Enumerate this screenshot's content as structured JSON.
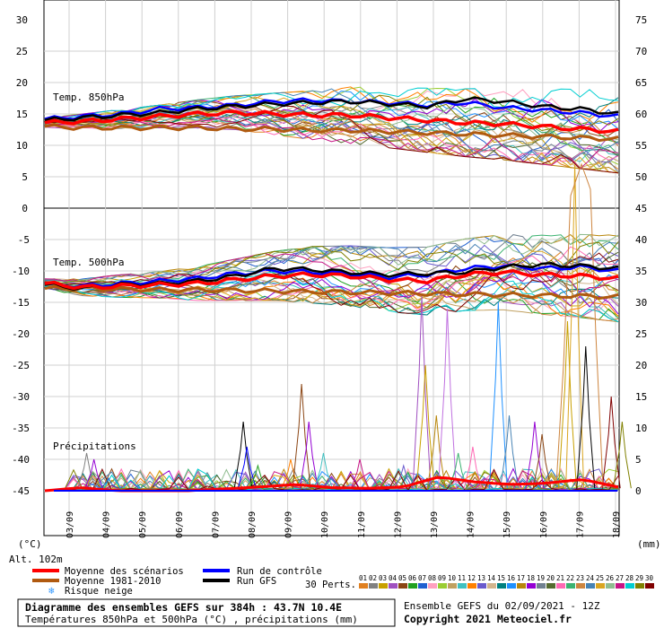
{
  "chart_data": {
    "type": "line",
    "footer": {
      "title": "Diagramme des ensembles GEFS sur 384h : 43.7N 10.4E",
      "subtitle": "Températures 850hPa et 500hPa (°C) , précipitations (mm)",
      "run": "Ensemble GEFS du 02/09/2021 - 12Z",
      "copyright": "Copyright 2021 Meteociel.fr"
    },
    "left_unit": "(°C)",
    "right_unit": "(mm)",
    "altitude": "Alt. 102m",
    "dates": [
      "03/09",
      "04/09",
      "05/09",
      "06/09",
      "07/09",
      "08/09",
      "09/09",
      "10/09",
      "11/09",
      "12/09",
      "13/09",
      "14/09",
      "15/09",
      "16/09",
      "17/09",
      "18/09"
    ],
    "panels": {
      "t850": {
        "label": "Temp. 850hPa",
        "left_ticks": [
          "30",
          "25",
          "20",
          "15",
          "10",
          "5",
          "0"
        ],
        "right_ticks": [
          "75",
          "70",
          "65",
          "60",
          "55",
          "50",
          "45"
        ],
        "ylim": [
          0,
          30
        ]
      },
      "t500": {
        "label": "Temp. 500hPa",
        "left_ticks": [
          "-5",
          "-10",
          "-15",
          "-20",
          "-25",
          "-30",
          "-35",
          "-40",
          "-45"
        ],
        "right_ticks": [
          "40",
          "35",
          "30",
          "25",
          "20",
          "15",
          "10",
          "5",
          "0"
        ],
        "ylim": [
          -45,
          0
        ]
      },
      "precip": {
        "label": "Précipitations"
      }
    },
    "legend": {
      "mean": "Moyenne des scénarios",
      "climo": "Moyenne 1981-2010",
      "snow": "Risque neige",
      "control": "Run de contrôle",
      "gfs": "Run GFS",
      "perts_label": "30 Perts.",
      "pert_ids": [
        "01",
        "02",
        "03",
        "04",
        "05",
        "06",
        "07",
        "08",
        "09",
        "10",
        "11",
        "12",
        "13",
        "14",
        "15",
        "16",
        "17",
        "18",
        "19",
        "20",
        "21",
        "22",
        "23",
        "24",
        "25",
        "26",
        "27",
        "28",
        "29",
        "30"
      ]
    },
    "colors": {
      "mean": "#ff0000",
      "climo": "#b05a10",
      "control": "#0000ff",
      "gfs": "#000000",
      "perts": [
        "#e08020",
        "#808080",
        "#c8a000",
        "#a050c0",
        "#8b4513",
        "#20a020",
        "#2060d0",
        "#ffa0c0",
        "#9acd32",
        "#c0a060",
        "#40c0c0",
        "#ff8000",
        "#6a5acd",
        "#d2b48c",
        "#008080",
        "#1e90ff",
        "#b8860b",
        "#9400d3",
        "#708090",
        "#556b2f",
        "#ff69b4",
        "#3cb371",
        "#cd853f",
        "#4682b4",
        "#daa520",
        "#8fbc8f",
        "#c71585",
        "#00ced1",
        "#808000",
        "#800000"
      ]
    },
    "series_850": {
      "mean": [
        13.6,
        13.8,
        14.2,
        14.6,
        15.0,
        15.2,
        15.0,
        14.8,
        14.8,
        14.4,
        14.0,
        13.6,
        13.4,
        13.0,
        12.6,
        12.2
      ],
      "climo": [
        13.0,
        12.8,
        12.8,
        12.8,
        12.8,
        12.6,
        12.6,
        12.4,
        12.4,
        12.2,
        12.0,
        11.8,
        11.6,
        11.4,
        11.2,
        11.0
      ],
      "control": [
        14.2,
        14.6,
        15.0,
        15.8,
        16.0,
        16.4,
        17.0,
        17.2,
        17.0,
        16.8,
        16.4,
        16.8,
        16.0,
        15.6,
        15.2,
        14.6
      ],
      "gfs": [
        14.0,
        14.4,
        14.8,
        15.2,
        15.8,
        16.2,
        16.6,
        16.8,
        17.0,
        16.6,
        16.2,
        17.4,
        17.0,
        16.2,
        15.8,
        15.0
      ],
      "spread": [
        0.6,
        0.8,
        1.0,
        1.2,
        1.5,
        1.8,
        2.2,
        2.6,
        3.0,
        3.2,
        3.4,
        3.6,
        3.8,
        4.0,
        4.2,
        4.4
      ]
    },
    "series_500": {
      "mean": [
        -12.0,
        -12.6,
        -12.4,
        -12.2,
        -12.0,
        -11.4,
        -10.8,
        -10.6,
        -10.8,
        -11.4,
        -11.6,
        -10.6,
        -10.2,
        -10.6,
        -10.8,
        -11.2
      ],
      "climo": [
        -12.8,
        -12.8,
        -12.9,
        -13.0,
        -13.0,
        -13.1,
        -13.2,
        -13.3,
        -13.4,
        -13.5,
        -13.6,
        -13.7,
        -13.8,
        -13.9,
        -14.0,
        -14.1
      ],
      "control": [
        -12.0,
        -12.4,
        -12.0,
        -11.6,
        -11.2,
        -10.4,
        -10.0,
        -10.2,
        -10.4,
        -11.0,
        -10.6,
        -9.6,
        -9.2,
        -9.6,
        -9.4,
        -10.0
      ],
      "gfs": [
        -12.2,
        -12.8,
        -12.2,
        -12.0,
        -11.6,
        -10.8,
        -9.6,
        -9.8,
        -10.2,
        -10.6,
        -10.4,
        -10.2,
        -9.4,
        -9.0,
        -9.2,
        -9.6
      ],
      "spread": [
        0.6,
        0.9,
        1.2,
        1.4,
        1.8,
        2.2,
        2.6,
        3.0,
        3.2,
        3.4,
        3.6,
        3.8,
        4.0,
        4.2,
        4.4,
        4.6
      ]
    },
    "precip_mean": [
      0,
      0.5,
      0,
      0,
      0,
      0.3,
      0.6,
      1.0,
      0.5,
      0.4,
      0.6,
      2.2,
      1.4,
      1.0,
      1.2,
      1.8,
      0.6
    ],
    "precip_peaks": [
      {
        "d": 0.9,
        "v": 6,
        "c": "#808080"
      },
      {
        "d": 1.1,
        "v": 5,
        "c": "#9400d3"
      },
      {
        "d": 1.5,
        "v": 2,
        "c": "#2060d0"
      },
      {
        "d": 5.2,
        "v": 11,
        "c": "#000000"
      },
      {
        "d": 5.3,
        "v": 7,
        "c": "#0000ff"
      },
      {
        "d": 5.6,
        "v": 4,
        "c": "#20a020"
      },
      {
        "d": 6.5,
        "v": 5,
        "c": "#ff8000"
      },
      {
        "d": 6.8,
        "v": 17,
        "c": "#8b4513"
      },
      {
        "d": 7.0,
        "v": 11,
        "c": "#9400d3"
      },
      {
        "d": 7.4,
        "v": 6,
        "c": "#40c0c0"
      },
      {
        "d": 8.4,
        "v": 5,
        "c": "#c71585"
      },
      {
        "d": 9.6,
        "v": 4,
        "c": "#6a5acd"
      },
      {
        "d": 10.1,
        "v": 31,
        "c": "#a050c0"
      },
      {
        "d": 10.2,
        "v": 20,
        "c": "#c8a000"
      },
      {
        "d": 10.5,
        "v": 12,
        "c": "#b8860b"
      },
      {
        "d": 10.8,
        "v": 29,
        "c": "#c071e0"
      },
      {
        "d": 11.1,
        "v": 6,
        "c": "#3cb371"
      },
      {
        "d": 11.5,
        "v": 7,
        "c": "#ff69b4"
      },
      {
        "d": 12.2,
        "v": 30,
        "c": "#1e90ff"
      },
      {
        "d": 12.5,
        "v": 12,
        "c": "#4682b4"
      },
      {
        "d": 13.2,
        "v": 11,
        "c": "#9400d3"
      },
      {
        "d": 13.4,
        "v": 9,
        "c": "#8b4513"
      },
      {
        "d": 14.1,
        "v": 27,
        "c": "#c8a000"
      },
      {
        "d": 14.3,
        "v": 52,
        "c": "#daa520"
      },
      {
        "d": 14.6,
        "v": 23,
        "c": "#000000"
      },
      {
        "d": 15.3,
        "v": 15,
        "c": "#800000"
      },
      {
        "d": 15.6,
        "v": 11,
        "c": "#808000"
      }
    ]
  }
}
